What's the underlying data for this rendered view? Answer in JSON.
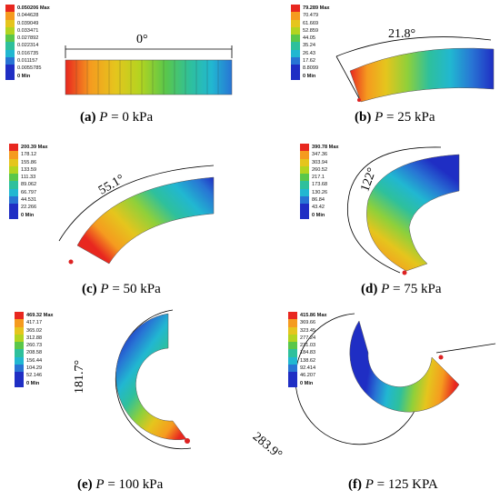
{
  "palette": [
    "#e8271f",
    "#f59b1f",
    "#e5c51d",
    "#b3d420",
    "#5ac74a",
    "#2ec09c",
    "#21b7d1",
    "#2874d4",
    "#1f2ec4"
  ],
  "panels": [
    {
      "id": "a",
      "legend": [
        "0.050206 Max",
        "0.044628",
        "0.039049",
        "0.033471",
        "0.027892",
        "0.022314",
        "0.016735",
        "0.011157",
        "0.0055785",
        "0 Min"
      ],
      "angle": "0°",
      "caption": {
        "letter": "(a)",
        "var": "P",
        "value": " = 0 kPa"
      }
    },
    {
      "id": "b",
      "legend": [
        "79.289 Max",
        "70.479",
        "61.669",
        "52.859",
        "44.05",
        "35.24",
        "26.43",
        "17.62",
        "8.8099",
        "0 Min"
      ],
      "angle": "21.8°",
      "caption": {
        "letter": "(b)",
        "var": "P",
        "value": " = 25 kPa"
      }
    },
    {
      "id": "c",
      "legend": [
        "200.39 Max",
        "178.12",
        "155.86",
        "133.59",
        "111.33",
        "89.062",
        "66.797",
        "44.531",
        "22.266",
        "0 Min"
      ],
      "angle": "55.1°",
      "caption": {
        "letter": "(c)",
        "var": "P",
        "value": " = 50 kPa"
      }
    },
    {
      "id": "d",
      "legend": [
        "390.78 Max",
        "347.36",
        "303.94",
        "260.52",
        "217.1",
        "173.68",
        "130.26",
        "86.84",
        "43.42",
        "0 Min"
      ],
      "angle": "122°",
      "caption": {
        "letter": "(d)",
        "var": "P",
        "value": " = 75 kPa"
      }
    },
    {
      "id": "e",
      "legend": [
        "469.32 Max",
        "417.17",
        "365.02",
        "312.88",
        "260.73",
        "208.58",
        "156.44",
        "104.29",
        "52.146",
        "0 Min"
      ],
      "angle": "181.7°",
      "caption": {
        "letter": "(e)",
        "var": "P",
        "value": " = 100 kPa"
      }
    },
    {
      "id": "f",
      "legend": [
        "415.86 Max",
        "369.66",
        "323.45",
        "277.24",
        "231.03",
        "184.83",
        "138.62",
        "92.414",
        "46.207",
        "0 Min"
      ],
      "angle": "283.9°",
      "caption": {
        "letter": "(f)",
        "var": "P",
        "value": " = 125 KPA"
      }
    }
  ]
}
